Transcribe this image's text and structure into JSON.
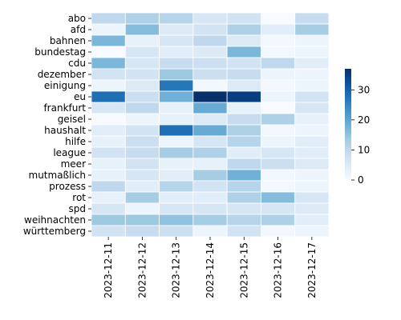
{
  "chart_data": {
    "type": "heatmap",
    "title": "",
    "xlabel": "",
    "ylabel": "",
    "x_categories": [
      "2023-12-11",
      "2023-12-12",
      "2023-12-13",
      "2023-12-14",
      "2023-12-15",
      "2023-12-16",
      "2023-12-17"
    ],
    "y_categories": [
      "abo",
      "afd",
      "bahnen",
      "bundestag",
      "cdu",
      "dezember",
      "einigung",
      "eu",
      "frankfurt",
      "geisel",
      "haushalt",
      "hilfe",
      "league",
      "meer",
      "mutmaßlich",
      "prozess",
      "rot",
      "spd",
      "weihnachten",
      "württemberg"
    ],
    "values": [
      [
        10,
        12,
        11,
        6,
        7,
        0,
        9
      ],
      [
        2,
        16,
        5,
        7,
        12,
        4,
        13
      ],
      [
        17,
        3,
        6,
        10,
        5,
        1,
        2
      ],
      [
        0,
        6,
        4,
        5,
        17,
        1,
        2
      ],
      [
        17,
        6,
        9,
        8,
        7,
        10,
        4
      ],
      [
        7,
        7,
        14,
        8,
        9,
        2,
        2
      ],
      [
        2,
        5,
        27,
        1,
        5,
        1,
        2
      ],
      [
        28,
        8,
        18,
        37,
        35,
        2,
        7
      ],
      [
        6,
        10,
        3,
        19,
        3,
        0,
        6
      ],
      [
        0,
        2,
        3,
        5,
        9,
        12,
        3
      ],
      [
        4,
        7,
        28,
        19,
        12,
        1,
        2
      ],
      [
        3,
        8,
        2,
        6,
        11,
        2,
        4
      ],
      [
        7,
        9,
        13,
        12,
        4,
        6,
        4
      ],
      [
        3,
        7,
        3,
        3,
        10,
        8,
        5
      ],
      [
        3,
        6,
        4,
        13,
        18,
        1,
        2
      ],
      [
        10,
        4,
        11,
        7,
        11,
        1,
        2
      ],
      [
        3,
        13,
        4,
        4,
        12,
        16,
        6
      ],
      [
        6,
        2,
        6,
        6,
        6,
        6,
        5
      ],
      [
        14,
        14,
        15,
        13,
        11,
        12,
        4
      ],
      [
        7,
        9,
        8,
        2,
        7,
        1,
        2
      ]
    ],
    "vmin": 0,
    "vmax": 37,
    "colorbar_ticks": [
      0,
      10,
      20,
      30
    ],
    "colormap": "Blues",
    "colormap_stops": [
      "#f7fbff",
      "#deebf7",
      "#c6dbef",
      "#9ecae1",
      "#6baed6",
      "#4292c6",
      "#2171b5",
      "#08519c",
      "#08306b"
    ],
    "cell_border_color": "#ffffff"
  }
}
